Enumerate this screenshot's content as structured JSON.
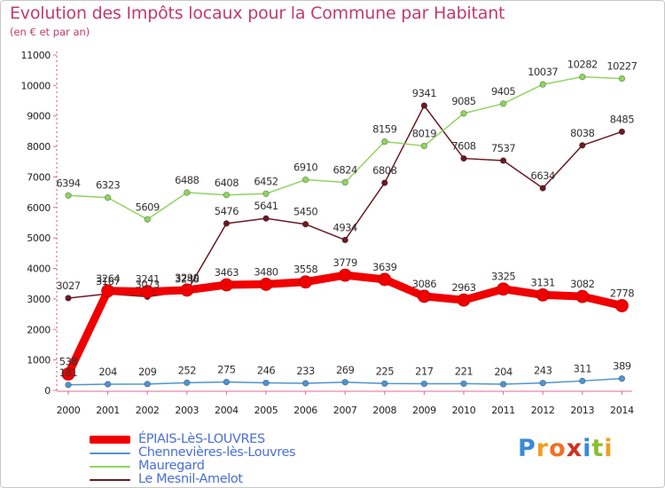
{
  "chart_data": {
    "type": "line",
    "title": "Evolution des Impôts locaux pour la Commune par Habitant",
    "subtitle": "(en € et par an)",
    "xlabel": "",
    "ylabel": "",
    "ylim": [
      0,
      11000
    ],
    "yticks": [
      0,
      1000,
      2000,
      3000,
      4000,
      5000,
      6000,
      7000,
      8000,
      9000,
      10000,
      11000
    ],
    "grid": false,
    "legend_position": "bottom-left",
    "categories": [
      "2000",
      "2001",
      "2002",
      "2003",
      "2004",
      "2005",
      "2006",
      "2007",
      "2008",
      "2009",
      "2010",
      "2011",
      "2012",
      "2013",
      "2014"
    ],
    "series": [
      {
        "name": "Le Mesnil-Amelot",
        "color": "#6b1a22",
        "values": [
          3027,
          3167,
          3073,
          3248,
          5476,
          5641,
          5450,
          4934,
          6808,
          9341,
          7608,
          7537,
          6634,
          8038,
          8485
        ],
        "labels": [
          "3027",
          "3167",
          "3073",
          "3248",
          "5476",
          "5641",
          "5450",
          "4934",
          "6808",
          "9341",
          "7608",
          "7537",
          "6634",
          "8038",
          "8485"
        ]
      },
      {
        "name": "Mauregard",
        "color": "#8fd45e",
        "values": [
          6394,
          6323,
          5609,
          6488,
          6408,
          6452,
          6910,
          6824,
          8159,
          8019,
          9085,
          9405,
          10037,
          10282,
          10227
        ],
        "labels": [
          "6394",
          "6323",
          "5609",
          "6488",
          "6408",
          "6452",
          "6910",
          "6824",
          "8159",
          "8019",
          "9085",
          "9405",
          "10037",
          "10282",
          "10227"
        ]
      },
      {
        "name": "Chennevières-lès-Louvres",
        "color": "#4d94d2",
        "values": [
          181,
          204,
          209,
          252,
          275,
          246,
          233,
          269,
          225,
          217,
          221,
          204,
          243,
          311,
          389
        ],
        "labels": [
          "181",
          "204",
          "209",
          "252",
          "275",
          "246",
          "233",
          "269",
          "225",
          "217",
          "221",
          "204",
          "243",
          "311",
          "389"
        ]
      },
      {
        "name": "ÉPIAIS-LèS-LOUVRES",
        "color": "#f00000",
        "values": [
          538,
          3264,
          3241,
          3290,
          3463,
          3480,
          3558,
          3779,
          3639,
          3086,
          2963,
          3325,
          3131,
          3082,
          2778
        ],
        "labels": [
          "538",
          "3264",
          "3241",
          "3290",
          "3463",
          "3480",
          "3558",
          "3779",
          "3639",
          "3086",
          "2963",
          "3325",
          "3131",
          "3082",
          "2778"
        ]
      }
    ],
    "legend": [
      "ÉPIAIS-LèS-LOUVRES",
      "Chennevières-lès-Louvres",
      "Mauregard",
      "Le Mesnil-Amelot"
    ]
  },
  "legend_items": [
    {
      "name": "ÉPIAIS-LèS-LOUVRES",
      "color": "#f00000"
    },
    {
      "name": "Chennevières-lès-Louvres",
      "color": "#4d94d2"
    },
    {
      "name": "Mauregard",
      "color": "#8fd45e"
    },
    {
      "name": "Le Mesnil-Amelot",
      "color": "#6b1a22"
    }
  ],
  "logo": {
    "letters": [
      "P",
      "r",
      "o",
      "x",
      "i",
      "t",
      "i"
    ],
    "colors": [
      "#3a8ad8",
      "#f0a020",
      "#f07020",
      "#d03020",
      "#3a8ad8",
      "#8ac030",
      "#f0a020"
    ]
  }
}
